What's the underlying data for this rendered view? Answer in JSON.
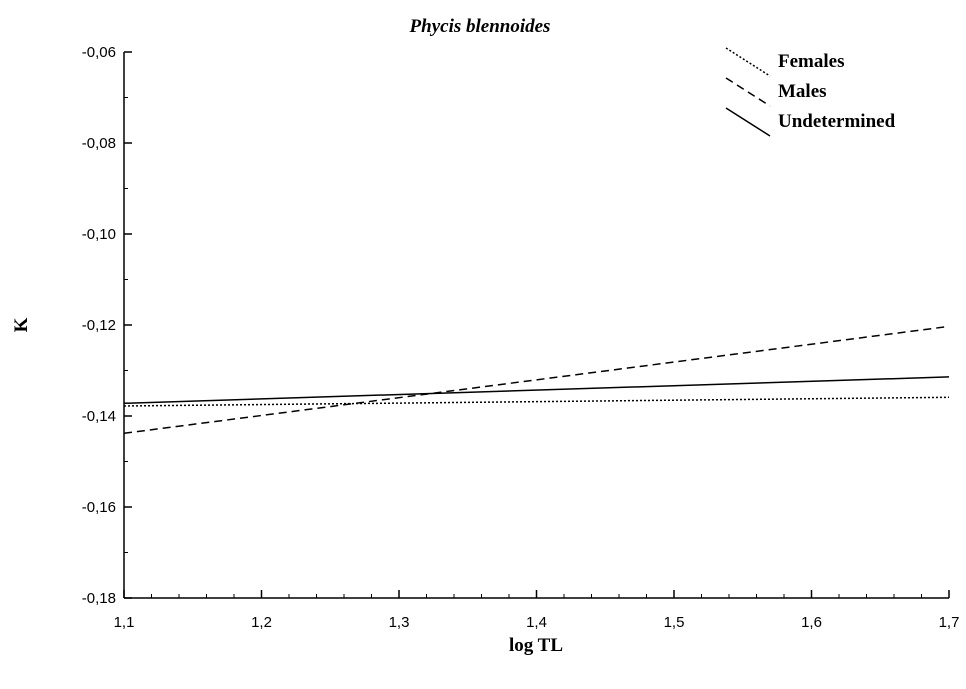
{
  "chart_data": {
    "type": "line",
    "title": "Phycis blennoides",
    "xlabel": "log TL",
    "ylabel": "K",
    "xlim": [
      1.1,
      1.7
    ],
    "ylim": [
      -0.18,
      -0.06
    ],
    "x_ticks": [
      "1,1",
      "1,2",
      "1,3",
      "1,4",
      "1,5",
      "1,6",
      "1,7"
    ],
    "y_ticks": [
      "-0,18",
      "-0,16",
      "-0,14",
      "-0,12",
      "-0,10",
      "-0,08",
      "-0,06"
    ],
    "grid": false,
    "legend_position": "top-right",
    "series": [
      {
        "name": "Females",
        "style": "dotted",
        "x": [
          1.1,
          1.7
        ],
        "y": [
          -0.1378,
          -0.1359
        ]
      },
      {
        "name": "Males",
        "style": "dashed",
        "x": [
          1.1,
          1.7
        ],
        "y": [
          -0.1438,
          -0.1203
        ]
      },
      {
        "name": "Undetermined",
        "style": "solid",
        "x": [
          1.1,
          1.7
        ],
        "y": [
          -0.1372,
          -0.1314
        ]
      }
    ]
  }
}
